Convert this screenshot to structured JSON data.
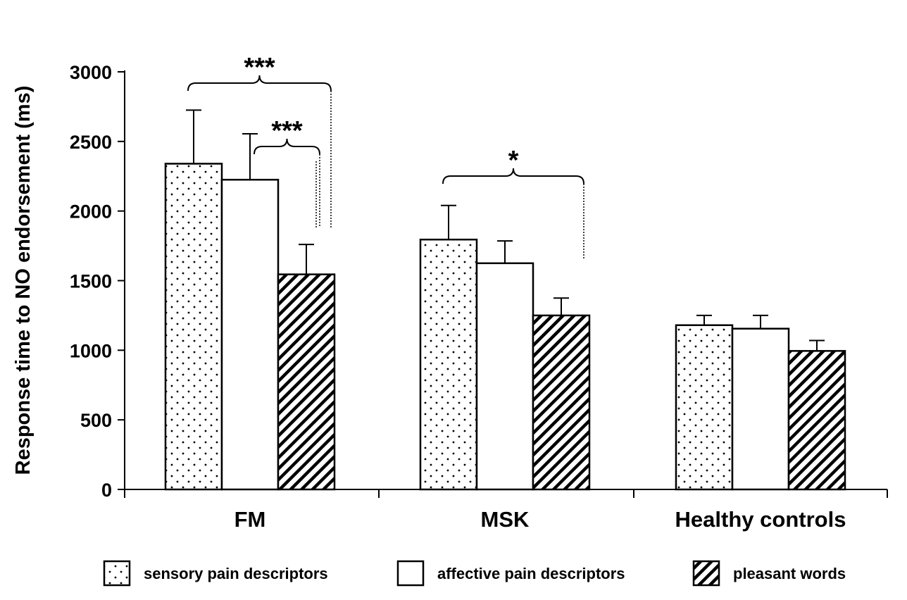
{
  "chart_data": {
    "type": "bar",
    "ylabel": "Response time to NO endorsement (ms)",
    "xlabel": "",
    "ylim": [
      0,
      3000
    ],
    "yticks": [
      0,
      500,
      1000,
      1500,
      2000,
      2500,
      3000
    ],
    "categories": [
      "FM",
      "MSK",
      "Healthy controls"
    ],
    "series": [
      {
        "name": "sensory pain descriptors",
        "pattern": "dots",
        "values": [
          2340,
          1795,
          1180
        ],
        "errors": [
          385,
          245,
          70
        ]
      },
      {
        "name": "affective pain descriptors",
        "pattern": "white",
        "values": [
          2225,
          1625,
          1155
        ],
        "errors": [
          330,
          160,
          95
        ]
      },
      {
        "name": "pleasant words",
        "pattern": "hatch",
        "values": [
          1545,
          1250,
          995
        ],
        "errors": [
          215,
          125,
          75
        ]
      }
    ],
    "significance": [
      {
        "category": "FM",
        "from_series": 0,
        "to_series": 2,
        "label": "***"
      },
      {
        "category": "FM",
        "from_series": 1,
        "to_series": 2,
        "label": "***"
      },
      {
        "category": "MSK",
        "from_series": 0,
        "to_series": 2,
        "label": "*"
      }
    ],
    "legend_position": "bottom",
    "grid": false,
    "colors": {
      "stroke": "#000000",
      "fill": "#ffffff"
    }
  }
}
